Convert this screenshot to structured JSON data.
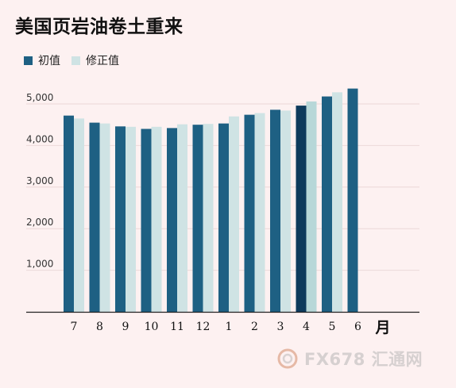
{
  "title": "美国页岩油卷土重来",
  "legend": {
    "initial": "初值",
    "revised": "修正值"
  },
  "colors": {
    "initial": "#1e6083",
    "initial_highlight": "#0d3a5c",
    "revised": "#cfe3e4",
    "revised_highlight": "#b7d7d8",
    "grid": "#ecd8d8",
    "axis": "#222222"
  },
  "watermark": {
    "text": "FX678 汇通网",
    "icon": "fx678-logo-icon"
  },
  "chart_data": {
    "type": "bar",
    "title": "美国页岩油卷土重来",
    "xlabel": "月",
    "ylabel": "",
    "categories": [
      "7",
      "8",
      "9",
      "10",
      "11",
      "12",
      "1",
      "2",
      "3",
      "4",
      "5",
      "6"
    ],
    "series": [
      {
        "name": "初值",
        "values": [
          4720,
          4550,
          4460,
          4400,
          4420,
          4500,
          4530,
          4740,
          4860,
          4960,
          5180,
          5370
        ]
      },
      {
        "name": "修正值",
        "values": [
          4650,
          4530,
          4450,
          4450,
          4510,
          4520,
          4700,
          4780,
          4840,
          5060,
          5280,
          null
        ]
      }
    ],
    "ylim": [
      0,
      5600
    ],
    "yticks": [
      1000,
      2000,
      3000,
      4000,
      5000
    ],
    "ytick_labels": [
      "1,000",
      "2,000",
      "3,000",
      "4,000",
      "5,000"
    ],
    "highlight_index": 9,
    "grid": true,
    "legend_position": "top-left"
  }
}
